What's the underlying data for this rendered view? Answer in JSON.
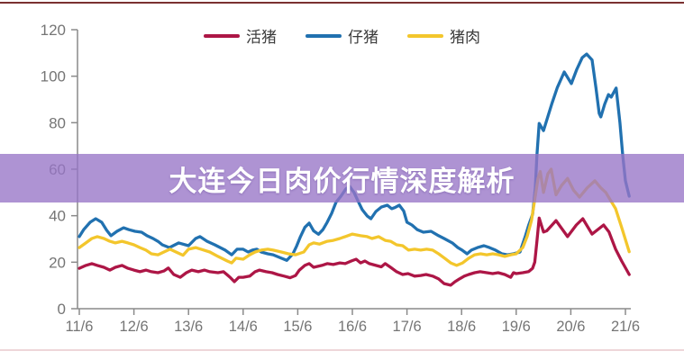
{
  "banner": {
    "title": "大连今日肉价行情深度解析"
  },
  "colors": {
    "live_pig": "#ad1646",
    "piglet": "#2171b0",
    "pork": "#f3c62c",
    "banner_overlay": "rgba(151,117,199,0.78)",
    "axis": "#8a8a8a",
    "tick_label": "#757575",
    "legend_text": "#3b3b3b",
    "top_rule": "#7a3030",
    "bottom_rule": "#eed6d9"
  },
  "legend": {
    "items": [
      {
        "label": "活猪",
        "color_key": "live_pig"
      },
      {
        "label": "仔猪",
        "color_key": "piglet"
      },
      {
        "label": "猪肉",
        "color_key": "pork"
      }
    ]
  },
  "chart_data": {
    "type": "line",
    "title": "",
    "xlabel": "",
    "ylabel": "",
    "legend_position": "top",
    "grid": false,
    "x_unit": "date (day/month)",
    "x_tick_labels": [
      "11/6",
      "12/6",
      "13/6",
      "14/6",
      "15/6",
      "16/6",
      "17/6",
      "18/6",
      "19/6",
      "20/6",
      "21/6"
    ],
    "y_ticks": [
      0,
      20,
      40,
      60,
      80,
      100,
      120
    ],
    "ylim": [
      0,
      120
    ],
    "xlim_days": [
      0,
      10.1
    ],
    "series": [
      {
        "name": "活猪",
        "color_key": "live_pig",
        "points": [
          [
            0,
            17.4
          ],
          [
            0.12,
            18.6
          ],
          [
            0.23,
            19.4
          ],
          [
            0.33,
            18.6
          ],
          [
            0.45,
            17.8
          ],
          [
            0.56,
            16.6
          ],
          [
            0.66,
            17.8
          ],
          [
            0.78,
            18.6
          ],
          [
            0.89,
            17.4
          ],
          [
            1.0,
            16.6
          ],
          [
            1.11,
            15.9
          ],
          [
            1.22,
            16.6
          ],
          [
            1.32,
            15.9
          ],
          [
            1.44,
            15.5
          ],
          [
            1.55,
            16.2
          ],
          [
            1.63,
            17.5
          ],
          [
            1.73,
            14.7
          ],
          [
            1.85,
            13.5
          ],
          [
            1.96,
            15.5
          ],
          [
            2.06,
            16.6
          ],
          [
            2.18,
            15.9
          ],
          [
            2.29,
            16.6
          ],
          [
            2.39,
            15.9
          ],
          [
            2.54,
            15.5
          ],
          [
            2.64,
            15.9
          ],
          [
            2.76,
            13.5
          ],
          [
            2.84,
            11.6
          ],
          [
            2.92,
            13.5
          ],
          [
            3.0,
            13.5
          ],
          [
            3.12,
            14.0
          ],
          [
            3.22,
            15.9
          ],
          [
            3.3,
            16.6
          ],
          [
            3.42,
            15.9
          ],
          [
            3.53,
            15.5
          ],
          [
            3.63,
            14.7
          ],
          [
            3.75,
            14.0
          ],
          [
            3.86,
            13.3
          ],
          [
            3.96,
            14.3
          ],
          [
            4.03,
            16.6
          ],
          [
            4.13,
            18.6
          ],
          [
            4.21,
            19.4
          ],
          [
            4.29,
            17.8
          ],
          [
            4.44,
            18.6
          ],
          [
            4.54,
            19.4
          ],
          [
            4.65,
            19.0
          ],
          [
            4.77,
            19.7
          ],
          [
            4.87,
            19.4
          ],
          [
            4.98,
            20.5
          ],
          [
            5.07,
            21.3
          ],
          [
            5.15,
            19.7
          ],
          [
            5.23,
            20.5
          ],
          [
            5.31,
            19.4
          ],
          [
            5.43,
            18.6
          ],
          [
            5.53,
            18.0
          ],
          [
            5.6,
            19.4
          ],
          [
            5.7,
            17.8
          ],
          [
            5.81,
            15.9
          ],
          [
            5.92,
            14.7
          ],
          [
            6.02,
            15.1
          ],
          [
            6.14,
            14.0
          ],
          [
            6.25,
            14.3
          ],
          [
            6.35,
            14.7
          ],
          [
            6.47,
            14.0
          ],
          [
            6.58,
            12.8
          ],
          [
            6.68,
            10.8
          ],
          [
            6.8,
            10.1
          ],
          [
            6.88,
            11.6
          ],
          [
            6.96,
            12.8
          ],
          [
            7.05,
            14.0
          ],
          [
            7.13,
            14.7
          ],
          [
            7.24,
            15.5
          ],
          [
            7.34,
            15.9
          ],
          [
            7.46,
            15.5
          ],
          [
            7.57,
            15.1
          ],
          [
            7.67,
            15.5
          ],
          [
            7.79,
            14.7
          ],
          [
            7.9,
            13.5
          ],
          [
            7.95,
            15.5
          ],
          [
            8.0,
            15.1
          ],
          [
            8.12,
            15.5
          ],
          [
            8.23,
            16.0
          ],
          [
            8.3,
            17.4
          ],
          [
            8.34,
            20.0
          ],
          [
            8.38,
            29.0
          ],
          [
            8.42,
            39.0
          ],
          [
            8.5,
            33.0
          ],
          [
            8.56,
            33.5
          ],
          [
            8.73,
            37.9
          ],
          [
            8.94,
            31.0
          ],
          [
            9.1,
            36.0
          ],
          [
            9.22,
            38.7
          ],
          [
            9.39,
            32.1
          ],
          [
            9.6,
            36.0
          ],
          [
            9.7,
            33.0
          ],
          [
            9.82,
            25.6
          ],
          [
            9.93,
            20.5
          ],
          [
            10.07,
            14.7
          ]
        ]
      },
      {
        "name": "仔猪",
        "color_key": "piglet",
        "points": [
          [
            0,
            31.0
          ],
          [
            0.08,
            34.0
          ],
          [
            0.2,
            37.2
          ],
          [
            0.3,
            38.7
          ],
          [
            0.41,
            37.2
          ],
          [
            0.5,
            33.8
          ],
          [
            0.58,
            31.4
          ],
          [
            0.69,
            33.3
          ],
          [
            0.81,
            34.8
          ],
          [
            0.91,
            34.0
          ],
          [
            1.02,
            33.3
          ],
          [
            1.14,
            32.9
          ],
          [
            1.24,
            31.4
          ],
          [
            1.35,
            30.2
          ],
          [
            1.45,
            28.8
          ],
          [
            1.52,
            27.5
          ],
          [
            1.65,
            26.3
          ],
          [
            1.82,
            28.3
          ],
          [
            2.0,
            27.1
          ],
          [
            2.13,
            30.2
          ],
          [
            2.21,
            31.0
          ],
          [
            2.34,
            29.0
          ],
          [
            2.48,
            27.5
          ],
          [
            2.67,
            25.2
          ],
          [
            2.79,
            23.2
          ],
          [
            2.89,
            25.6
          ],
          [
            3.0,
            25.6
          ],
          [
            3.09,
            24.4
          ],
          [
            3.17,
            25.2
          ],
          [
            3.25,
            25.6
          ],
          [
            3.33,
            24.4
          ],
          [
            3.45,
            23.6
          ],
          [
            3.55,
            23.2
          ],
          [
            3.7,
            21.7
          ],
          [
            3.8,
            20.8
          ],
          [
            3.91,
            23.5
          ],
          [
            3.98,
            27.0
          ],
          [
            4.05,
            31.0
          ],
          [
            4.13,
            35.0
          ],
          [
            4.21,
            36.8
          ],
          [
            4.29,
            33.5
          ],
          [
            4.38,
            32.0
          ],
          [
            4.46,
            34.0
          ],
          [
            4.54,
            37.2
          ],
          [
            4.62,
            41.0
          ],
          [
            4.7,
            45.7
          ],
          [
            4.79,
            48.4
          ],
          [
            4.88,
            51.5
          ],
          [
            4.95,
            52.6
          ],
          [
            5.03,
            50.0
          ],
          [
            5.11,
            46.0
          ],
          [
            5.18,
            42.6
          ],
          [
            5.27,
            39.9
          ],
          [
            5.34,
            38.7
          ],
          [
            5.43,
            41.8
          ],
          [
            5.53,
            43.7
          ],
          [
            5.64,
            44.5
          ],
          [
            5.72,
            43.0
          ],
          [
            5.78,
            43.5
          ],
          [
            5.86,
            44.5
          ],
          [
            5.94,
            42.0
          ],
          [
            6.0,
            37.2
          ],
          [
            6.09,
            36.0
          ],
          [
            6.19,
            34.0
          ],
          [
            6.3,
            32.9
          ],
          [
            6.44,
            33.3
          ],
          [
            6.58,
            31.4
          ],
          [
            6.68,
            30.2
          ],
          [
            6.83,
            28.3
          ],
          [
            6.93,
            26.3
          ],
          [
            7.01,
            25.2
          ],
          [
            7.1,
            23.6
          ],
          [
            7.18,
            25.2
          ],
          [
            7.29,
            26.3
          ],
          [
            7.41,
            27.1
          ],
          [
            7.51,
            26.3
          ],
          [
            7.62,
            25.2
          ],
          [
            7.74,
            23.6
          ],
          [
            7.84,
            23.2
          ],
          [
            7.95,
            23.6
          ],
          [
            8.07,
            24.4
          ],
          [
            8.17,
            31.4
          ],
          [
            8.23,
            36.0
          ],
          [
            8.3,
            40.6
          ],
          [
            8.35,
            52.0
          ],
          [
            8.38,
            66.0
          ],
          [
            8.42,
            79.7
          ],
          [
            8.5,
            76.6
          ],
          [
            8.65,
            88.0
          ],
          [
            8.75,
            95.0
          ],
          [
            8.88,
            101.8
          ],
          [
            9.01,
            96.8
          ],
          [
            9.11,
            103.0
          ],
          [
            9.21,
            108.0
          ],
          [
            9.29,
            109.5
          ],
          [
            9.39,
            107.0
          ],
          [
            9.46,
            95.0
          ],
          [
            9.52,
            84.0
          ],
          [
            9.55,
            82.5
          ],
          [
            9.62,
            88.0
          ],
          [
            9.69,
            92.1
          ],
          [
            9.74,
            91.0
          ],
          [
            9.83,
            94.9
          ],
          [
            9.9,
            80.0
          ],
          [
            9.95,
            66.0
          ],
          [
            10.0,
            55.0
          ],
          [
            10.07,
            48.4
          ]
        ]
      },
      {
        "name": "猪肉",
        "color_key": "pork",
        "points": [
          [
            0,
            26.3
          ],
          [
            0.12,
            28.3
          ],
          [
            0.23,
            30.2
          ],
          [
            0.33,
            31.0
          ],
          [
            0.45,
            30.2
          ],
          [
            0.56,
            29.0
          ],
          [
            0.66,
            28.3
          ],
          [
            0.78,
            29.0
          ],
          [
            0.89,
            28.3
          ],
          [
            1.0,
            27.5
          ],
          [
            1.11,
            26.3
          ],
          [
            1.22,
            25.2
          ],
          [
            1.32,
            23.6
          ],
          [
            1.44,
            23.2
          ],
          [
            1.55,
            24.4
          ],
          [
            1.66,
            25.6
          ],
          [
            1.77,
            24.4
          ],
          [
            1.9,
            23.0
          ],
          [
            2.0,
            25.6
          ],
          [
            2.13,
            26.3
          ],
          [
            2.23,
            25.6
          ],
          [
            2.39,
            24.4
          ],
          [
            2.54,
            22.5
          ],
          [
            2.71,
            20.5
          ],
          [
            2.79,
            19.7
          ],
          [
            2.87,
            21.7
          ],
          [
            3.0,
            21.3
          ],
          [
            3.12,
            23.2
          ],
          [
            3.22,
            24.4
          ],
          [
            3.33,
            25.2
          ],
          [
            3.45,
            25.6
          ],
          [
            3.55,
            25.2
          ],
          [
            3.7,
            24.4
          ],
          [
            3.83,
            23.6
          ],
          [
            3.96,
            23.2
          ],
          [
            4.11,
            24.4
          ],
          [
            4.21,
            27.5
          ],
          [
            4.29,
            28.3
          ],
          [
            4.4,
            27.8
          ],
          [
            4.54,
            29.0
          ],
          [
            4.65,
            29.4
          ],
          [
            4.77,
            30.2
          ],
          [
            4.87,
            31.0
          ],
          [
            5.0,
            32.1
          ],
          [
            5.15,
            31.4
          ],
          [
            5.27,
            31.0
          ],
          [
            5.36,
            30.2
          ],
          [
            5.48,
            31.0
          ],
          [
            5.6,
            29.4
          ],
          [
            5.7,
            29.0
          ],
          [
            5.81,
            27.5
          ],
          [
            5.92,
            27.1
          ],
          [
            6.03,
            25.2
          ],
          [
            6.14,
            25.6
          ],
          [
            6.25,
            25.2
          ],
          [
            6.36,
            25.6
          ],
          [
            6.47,
            25.2
          ],
          [
            6.58,
            23.6
          ],
          [
            6.69,
            21.7
          ],
          [
            6.8,
            19.7
          ],
          [
            6.91,
            18.6
          ],
          [
            7.02,
            19.7
          ],
          [
            7.13,
            21.7
          ],
          [
            7.24,
            23.2
          ],
          [
            7.35,
            23.6
          ],
          [
            7.46,
            23.2
          ],
          [
            7.57,
            23.6
          ],
          [
            7.68,
            23.2
          ],
          [
            7.79,
            22.5
          ],
          [
            7.9,
            23.2
          ],
          [
            8.0,
            23.6
          ],
          [
            8.12,
            26.3
          ],
          [
            8.2,
            31.0
          ],
          [
            8.28,
            38.0
          ],
          [
            8.34,
            47.0
          ],
          [
            8.4,
            56.0
          ],
          [
            8.44,
            59.0
          ],
          [
            8.5,
            50.0
          ],
          [
            8.58,
            58.0
          ],
          [
            8.64,
            60.0
          ],
          [
            8.73,
            49.0
          ],
          [
            8.83,
            53.0
          ],
          [
            8.94,
            56.0
          ],
          [
            9.05,
            51.0
          ],
          [
            9.16,
            48.0
          ],
          [
            9.3,
            52.0
          ],
          [
            9.44,
            55.0
          ],
          [
            9.55,
            52.0
          ],
          [
            9.64,
            50.0
          ],
          [
            9.82,
            43.0
          ],
          [
            9.93,
            35.0
          ],
          [
            10.07,
            24.5
          ]
        ]
      }
    ]
  }
}
